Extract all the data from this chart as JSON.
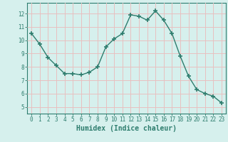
{
  "x": [
    0,
    1,
    2,
    3,
    4,
    5,
    6,
    7,
    8,
    9,
    10,
    11,
    12,
    13,
    14,
    15,
    16,
    17,
    18,
    19,
    20,
    21,
    22,
    23
  ],
  "y": [
    10.5,
    9.7,
    8.7,
    8.1,
    7.5,
    7.5,
    7.4,
    7.6,
    8.0,
    9.5,
    10.1,
    10.5,
    11.9,
    11.8,
    11.5,
    12.2,
    11.5,
    10.5,
    8.8,
    7.3,
    6.3,
    6.0,
    5.8,
    5.3
  ],
  "line_color": "#2e7d6e",
  "marker": "+",
  "marker_size": 4,
  "bg_color": "#d6f0ed",
  "grid_color": "#e8c0c0",
  "xlabel": "Humidex (Indice chaleur)",
  "xlim": [
    -0.5,
    23.5
  ],
  "ylim": [
    4.5,
    12.8
  ],
  "xticks": [
    0,
    1,
    2,
    3,
    4,
    5,
    6,
    7,
    8,
    9,
    10,
    11,
    12,
    13,
    14,
    15,
    16,
    17,
    18,
    19,
    20,
    21,
    22,
    23
  ],
  "yticks": [
    5,
    6,
    7,
    8,
    9,
    10,
    11,
    12
  ],
  "xtick_labels": [
    "0",
    "1",
    "2",
    "3",
    "4",
    "5",
    "6",
    "7",
    "8",
    "9",
    "10",
    "11",
    "12",
    "13",
    "14",
    "15",
    "16",
    "17",
    "18",
    "19",
    "20",
    "21",
    "22",
    "23"
  ],
  "axis_color": "#2e7d6e",
  "tick_color": "#2e7d6e",
  "label_fontsize": 7,
  "tick_fontsize": 5.5
}
